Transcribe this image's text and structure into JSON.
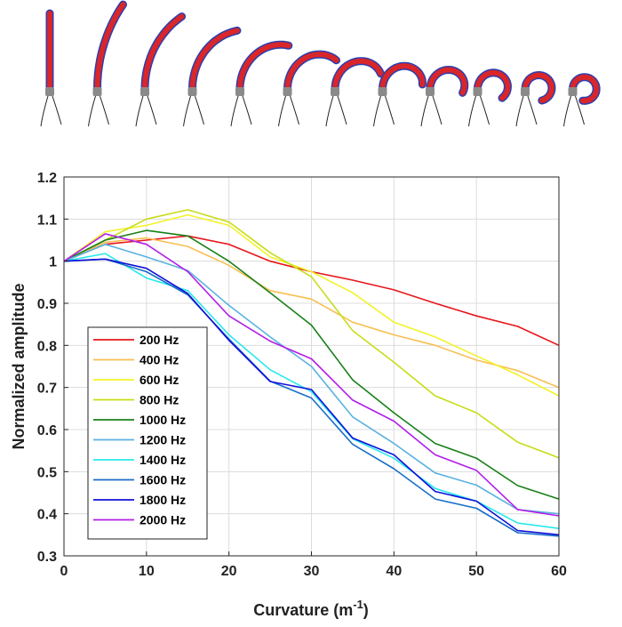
{
  "figure_strip": {
    "description_icon": "bending-actuator-photo",
    "panels": 12,
    "actuator_colors": {
      "body": "#d8262a",
      "edge": "#2a3fb0",
      "base": "#8a8a8a",
      "wire": "#222222"
    }
  },
  "chart_data": {
    "type": "line",
    "title": "",
    "xlabel": "Curvature (m",
    "xlabel_sup": "-1",
    "xlabel_close": ")",
    "ylabel": "Normalized amplitude",
    "xlim": [
      0,
      60
    ],
    "ylim": [
      0.3,
      1.2
    ],
    "xticks": [
      0,
      10,
      20,
      30,
      40,
      50,
      60
    ],
    "yticks": [
      0.3,
      0.4,
      0.5,
      0.6,
      0.7,
      0.8,
      0.9,
      1,
      1.1,
      1.2
    ],
    "xtick_labels": [
      "0",
      "10",
      "20",
      "30",
      "40",
      "50",
      "60"
    ],
    "ytick_labels": [
      "0.3",
      "0.4",
      "0.5",
      "0.6",
      "0.7",
      "0.8",
      "0.9",
      "1",
      "1.1",
      "1.2"
    ],
    "grid": true,
    "legend_position": "bottom-left",
    "x": [
      0,
      5,
      10,
      15,
      20,
      25,
      30,
      35,
      40,
      45,
      50,
      55,
      60
    ],
    "series": [
      {
        "name": "200 Hz",
        "color": "#e8161b",
        "values": [
          1.0,
          1.04,
          1.05,
          1.06,
          1.04,
          1.0,
          0.975,
          0.955,
          0.932,
          0.9,
          0.87,
          0.845,
          0.8
        ]
      },
      {
        "name": "400 Hz",
        "color": "#f8bf52",
        "values": [
          1.0,
          1.045,
          1.055,
          1.035,
          0.99,
          0.93,
          0.91,
          0.855,
          0.825,
          0.8,
          0.765,
          0.74,
          0.7
        ]
      },
      {
        "name": "600 Hz",
        "color": "#f2f22a",
        "values": [
          1.0,
          1.07,
          1.085,
          1.11,
          1.085,
          1.01,
          0.975,
          0.925,
          0.855,
          0.82,
          0.775,
          0.73,
          0.68
        ]
      },
      {
        "name": "800 Hz",
        "color": "#c8dc16",
        "values": [
          1.0,
          1.05,
          1.1,
          1.122,
          1.093,
          1.02,
          0.963,
          0.835,
          0.76,
          0.68,
          0.64,
          0.57,
          0.533
        ]
      },
      {
        "name": "1000 Hz",
        "color": "#188018",
        "values": [
          1.0,
          1.05,
          1.073,
          1.06,
          1.0,
          0.925,
          0.848,
          0.718,
          0.64,
          0.567,
          0.532,
          0.467,
          0.435
        ]
      },
      {
        "name": "1200 Hz",
        "color": "#5ab2e0",
        "values": [
          1.0,
          1.04,
          1.01,
          0.978,
          0.895,
          0.82,
          0.75,
          0.63,
          0.567,
          0.497,
          0.468,
          0.41,
          0.4
        ]
      },
      {
        "name": "1400 Hz",
        "color": "#28e8ec",
        "values": [
          1.0,
          1.018,
          0.96,
          0.93,
          0.825,
          0.742,
          0.69,
          0.578,
          0.532,
          0.46,
          0.43,
          0.378,
          0.365
        ]
      },
      {
        "name": "1600 Hz",
        "color": "#1a6ec8",
        "values": [
          1.0,
          1.005,
          0.975,
          0.92,
          0.815,
          0.715,
          0.675,
          0.565,
          0.507,
          0.435,
          0.413,
          0.355,
          0.347
        ]
      },
      {
        "name": "1800 Hz",
        "color": "#1010d8",
        "values": [
          1.0,
          1.005,
          0.983,
          0.923,
          0.812,
          0.714,
          0.695,
          0.58,
          0.54,
          0.453,
          0.43,
          0.36,
          0.35
        ]
      },
      {
        "name": "2000 Hz",
        "color": "#b21ee8",
        "values": [
          1.0,
          1.065,
          1.04,
          0.975,
          0.87,
          0.81,
          0.768,
          0.67,
          0.62,
          0.54,
          0.503,
          0.41,
          0.395
        ]
      }
    ]
  }
}
